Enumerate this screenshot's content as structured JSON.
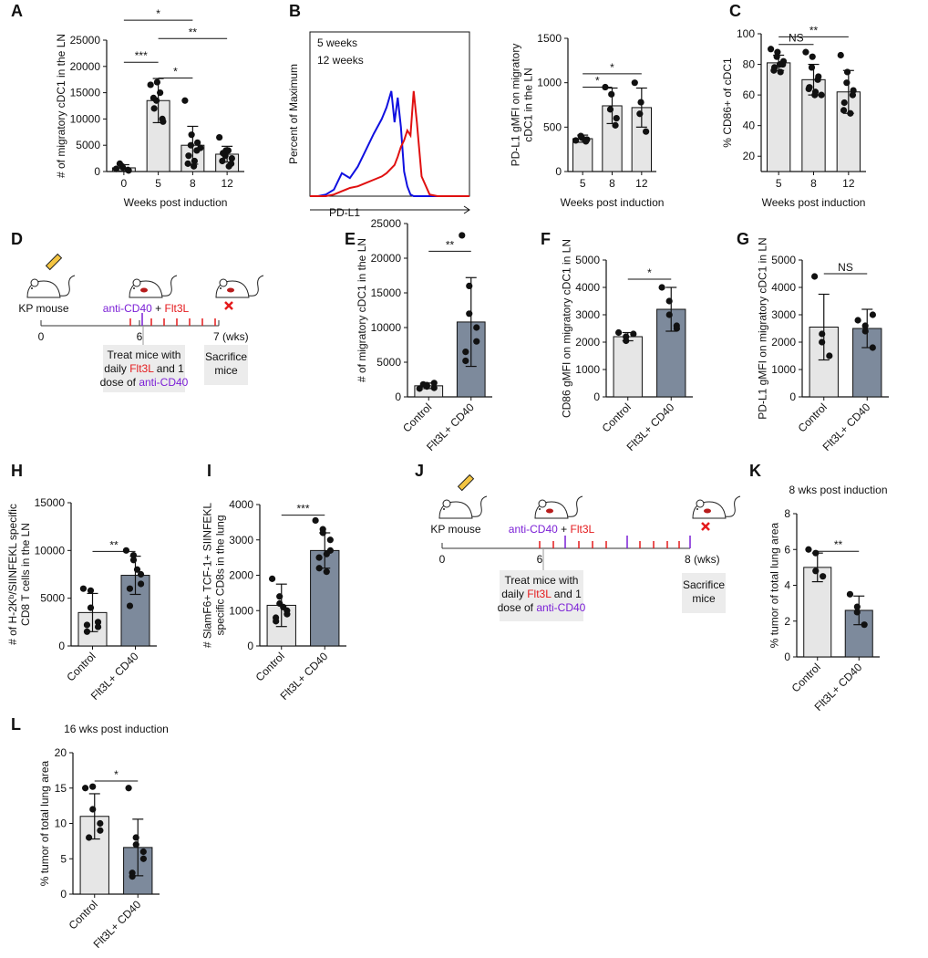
{
  "chart_data": [
    {
      "type": "bar",
      "panel": "A",
      "ylabel": [
        "# of migratory cDC1 in the LN"
      ],
      "xlabel": "Weeks post induction",
      "categories": [
        "0",
        "5",
        "8",
        "12"
      ],
      "values": [
        700,
        13500,
        5000,
        3300
      ],
      "errors": [
        600,
        4200,
        3600,
        1500
      ],
      "points": [
        [
          500,
          800,
          1000,
          200,
          300,
          1500
        ],
        [
          16500,
          17000,
          13500,
          9500,
          10000,
          12000,
          14000,
          15000
        ],
        [
          13500,
          7000,
          5000,
          5500,
          4000,
          3000,
          1500,
          2000,
          1000,
          4500
        ],
        [
          6500,
          4000,
          3000,
          2500,
          1500,
          3500,
          2000,
          1000,
          4000
        ]
      ],
      "colors": [
        "#e6e6e6",
        "#e6e6e6",
        "#e6e6e6",
        "#e6e6e6"
      ],
      "ylim": [
        0,
        25000
      ],
      "yticks": [
        0,
        5000,
        10000,
        15000,
        20000,
        25000
      ],
      "brackets": [
        {
          "from": "0",
          "to": "5",
          "y": 20800,
          "label": "***"
        },
        {
          "from": "5",
          "to": "8",
          "y": 17800,
          "label": "*"
        },
        {
          "from": "5",
          "to": "12",
          "y": 25300,
          "label": "**"
        },
        {
          "from": "0",
          "to": "8",
          "y": 28800,
          "label": "*"
        }
      ]
    },
    {
      "type": "line",
      "panel": "B",
      "ylabel": "Percent of Maximum",
      "xlabel": "PD-L1",
      "x": [
        0,
        5,
        10,
        15,
        20,
        25,
        30,
        35,
        40,
        45,
        48,
        51,
        53,
        55,
        57,
        59,
        61,
        63,
        65,
        67,
        70,
        75,
        80,
        90,
        100
      ],
      "xlim": [
        0,
        100
      ],
      "ylim": [
        0,
        100
      ],
      "series": [
        {
          "name": "5 weeks",
          "color": "#1010e0",
          "values": [
            0,
            0,
            1,
            4,
            14,
            11,
            18,
            28,
            38,
            47,
            54,
            64,
            45,
            60,
            42,
            15,
            6,
            1,
            0,
            0,
            0,
            0,
            0,
            0,
            0
          ]
        },
        {
          "name": "12 weeks",
          "color": "#e01010",
          "values": [
            0,
            0,
            0,
            1,
            3,
            5,
            6,
            8,
            10,
            12,
            14,
            17,
            19,
            24,
            30,
            34,
            40,
            37,
            64,
            45,
            12,
            1,
            0,
            0,
            0
          ]
        }
      ]
    },
    {
      "type": "bar",
      "ylabel": [
        "PD-L1 gMFI on migratory",
        "cDC1 in the LN"
      ],
      "xlabel": "Weeks post induction",
      "categories": [
        "5",
        "8",
        "12"
      ],
      "values": [
        370,
        740,
        720
      ],
      "errors": [
        40,
        200,
        220
      ],
      "points": [
        [
          350,
          380,
          400,
          360,
          340
        ],
        [
          950,
          870,
          700,
          600,
          520
        ],
        [
          1000,
          780,
          650,
          450
        ]
      ],
      "colors": [
        "#e6e6e6",
        "#e6e6e6",
        "#e6e6e6"
      ],
      "ylim": [
        0,
        1500
      ],
      "yticks": [
        0,
        500,
        1000,
        1500
      ],
      "brackets": [
        {
          "from": "5",
          "to": "8",
          "y": 950,
          "label": "*"
        },
        {
          "from": "5",
          "to": "12",
          "y": 1100,
          "label": "*"
        }
      ]
    },
    {
      "type": "bar",
      "panel": "C",
      "ylabel": [
        "% CD86+ of cDC1"
      ],
      "xlabel": "Weeks post induction",
      "categories": [
        "5",
        "8",
        "12"
      ],
      "values": [
        81,
        70,
        62
      ],
      "errors": [
        5,
        10,
        14
      ],
      "points": [
        [
          90,
          88,
          85,
          82,
          80,
          78,
          76,
          75,
          80
        ],
        [
          88,
          85,
          78,
          72,
          70,
          65,
          64,
          62,
          60,
          60
        ],
        [
          86,
          75,
          68,
          63,
          60,
          55,
          50,
          48
        ]
      ],
      "colors": [
        "#e6e6e6",
        "#e6e6e6",
        "#e6e6e6"
      ],
      "ylim": [
        10,
        100
      ],
      "yticks": [
        20,
        40,
        60,
        80,
        100
      ],
      "brackets": [
        {
          "from": "5",
          "to": "8",
          "y": 93,
          "label": "NS"
        },
        {
          "from": "5",
          "to": "12",
          "y": 98,
          "label": "**"
        }
      ]
    },
    {
      "type": "bar",
      "panel": "E",
      "ylabel": [
        "# of migratory cDC1 in the LN"
      ],
      "categories": [
        "Control",
        "Flt3L+ CD40"
      ],
      "values": [
        1600,
        10800
      ],
      "errors": [
        400,
        6400
      ],
      "points": [
        [
          1200,
          1500,
          1700,
          2000,
          1300,
          1800
        ],
        [
          23300,
          16000,
          12000,
          10000,
          8000,
          6500,
          5200
        ]
      ],
      "colors": [
        "#e6e6e6",
        "#7d8a9c"
      ],
      "ylim": [
        0,
        25000
      ],
      "yticks": [
        0,
        5000,
        10000,
        15000,
        20000,
        25000
      ],
      "brackets": [
        {
          "from": "Control",
          "to": "Flt3L+ CD40",
          "y": 21000,
          "label": "**"
        }
      ]
    },
    {
      "type": "bar",
      "panel": "F",
      "ylabel": [
        "CD86 gMFI on migratory cDC1 in LN"
      ],
      "categories": [
        "Control",
        "Flt3L+ CD40"
      ],
      "values": [
        2200,
        3200
      ],
      "errors": [
        150,
        800
      ],
      "points": [
        [
          2350,
          2200,
          2050,
          2300
        ],
        [
          4000,
          3500,
          3000,
          2600,
          2500
        ]
      ],
      "colors": [
        "#e6e6e6",
        "#7d8a9c"
      ],
      "ylim": [
        0,
        5000
      ],
      "yticks": [
        0,
        1000,
        2000,
        3000,
        4000,
        5000
      ],
      "brackets": [
        {
          "from": "Control",
          "to": "Flt3L+ CD40",
          "y": 4300,
          "label": "*"
        }
      ]
    },
    {
      "type": "bar",
      "panel": "G",
      "ylabel": [
        "PD-L1 gMFI on migratory cDC1 in LN"
      ],
      "categories": [
        "Control",
        "Flt3L+ CD40"
      ],
      "values": [
        2550,
        2500
      ],
      "errors": [
        1200,
        700
      ],
      "points": [
        [
          4400,
          2000,
          2300,
          1500
        ],
        [
          2800,
          2600,
          2400,
          1800,
          3000
        ]
      ],
      "colors": [
        "#e6e6e6",
        "#7d8a9c"
      ],
      "ylim": [
        0,
        5000
      ],
      "yticks": [
        0,
        1000,
        2000,
        3000,
        4000,
        5000
      ],
      "brackets": [
        {
          "from": "Control",
          "to": "Flt3L+ CD40",
          "y": 4500,
          "label": "NS"
        }
      ]
    },
    {
      "type": "bar",
      "panel": "H",
      "ylabel": [
        "# of H-2Kᵇ/SIINFEKL specific",
        "CD8 T cells in the LN"
      ],
      "categories": [
        "Control",
        "Flt3L+ CD40"
      ],
      "values": [
        3500,
        7400
      ],
      "errors": [
        2000,
        2000
      ],
      "points": [
        [
          6000,
          5800,
          4000,
          2500,
          2000,
          2200,
          1500
        ],
        [
          10000,
          9500,
          9000,
          7500,
          6500,
          6000,
          4200,
          8000
        ]
      ],
      "colors": [
        "#e6e6e6",
        "#7d8a9c"
      ],
      "ylim": [
        0,
        15000
      ],
      "yticks": [
        0,
        5000,
        10000,
        15000
      ],
      "brackets": [
        {
          "from": "Control",
          "to": "Flt3L+ CD40",
          "y": 9900,
          "label": "**"
        }
      ]
    },
    {
      "type": "bar",
      "panel": "I",
      "ylabel": [
        "# SlamF6+ TCF-1+ SIINFEKL",
        "specific CD8s in the lung"
      ],
      "categories": [
        "Control",
        "Flt3L+ CD40"
      ],
      "values": [
        1150,
        2700
      ],
      "errors": [
        600,
        500
      ],
      "points": [
        [
          1900,
          1400,
          1200,
          1000,
          900,
          800,
          700,
          1100
        ],
        [
          3550,
          3300,
          3200,
          3000,
          2700,
          2500,
          2200,
          2100,
          2600
        ]
      ],
      "colors": [
        "#e6e6e6",
        "#7d8a9c"
      ],
      "ylim": [
        0,
        4000
      ],
      "yticks": [
        0,
        1000,
        2000,
        3000,
        4000
      ],
      "brackets": [
        {
          "from": "Control",
          "to": "Flt3L+ CD40",
          "y": 3700,
          "label": "***"
        }
      ]
    },
    {
      "type": "bar",
      "panel": "K",
      "title": "8 wks post induction",
      "ylabel": [
        "% tumor of total lung area"
      ],
      "categories": [
        "Control",
        "Flt3L+ CD40"
      ],
      "values": [
        5,
        2.6
      ],
      "errors": [
        0.8,
        0.8
      ],
      "points": [
        [
          6,
          5.8,
          4.8,
          4.5
        ],
        [
          3.5,
          2.8,
          2.5,
          1.8
        ]
      ],
      "colors": [
        "#e6e6e6",
        "#7d8a9c"
      ],
      "ylim": [
        0,
        8
      ],
      "yticks": [
        0,
        2,
        4,
        6,
        8
      ],
      "brackets": [
        {
          "from": "Control",
          "to": "Flt3L+ CD40",
          "y": 5.9,
          "label": "**"
        }
      ]
    },
    {
      "type": "bar",
      "panel": "L",
      "title": "16 wks post induction",
      "ylabel": [
        "% tumor of total lung area"
      ],
      "categories": [
        "Control",
        "Flt3L+ CD40"
      ],
      "values": [
        11,
        6.6
      ],
      "errors": [
        3.2,
        4
      ],
      "points": [
        [
          15,
          15.2,
          12,
          10,
          9,
          8
        ],
        [
          15,
          8,
          7,
          6,
          5,
          3,
          2.5
        ]
      ],
      "colors": [
        "#e6e6e6",
        "#7d8a9c"
      ],
      "ylim": [
        0,
        20
      ],
      "yticks": [
        0,
        5,
        10,
        15,
        20
      ],
      "brackets": [
        {
          "from": "Control",
          "to": "Flt3L+ CD40",
          "y": 16,
          "label": "*"
        }
      ]
    }
  ],
  "diagrams": [
    {
      "panel": "D",
      "mouse_label": "KP mouse",
      "treatment": [
        {
          "text": "anti-CD40",
          "color": "#7b1fd6"
        },
        {
          "text": " + "
        },
        {
          "text": "Flt3L",
          "color": "#e41a1c"
        }
      ],
      "timeline_labels": [
        "0",
        "6",
        "7 (wks)"
      ],
      "treat_box": [
        [
          {
            "text": "Treat mice with"
          }
        ],
        [
          {
            "text": "daily "
          },
          {
            "text": "Flt3L",
            "color": "#e41a1c"
          },
          {
            "text": " and 1"
          }
        ],
        [
          {
            "text": "dose of "
          },
          {
            "text": "anti-CD40",
            "color": "#7b1fd6"
          }
        ]
      ],
      "sacrifice_box": [
        "Sacrifice",
        "mice"
      ]
    },
    {
      "panel": "J",
      "mouse_label": "KP mouse",
      "treatment": [
        {
          "text": "anti-CD40",
          "color": "#7b1fd6"
        },
        {
          "text": " + "
        },
        {
          "text": "Flt3L",
          "color": "#e41a1c"
        }
      ],
      "timeline_labels": [
        "0",
        "6",
        "8 (wks)"
      ],
      "treat_box": [
        [
          {
            "text": "Treat mice with"
          }
        ],
        [
          {
            "text": "daily "
          },
          {
            "text": "Flt3L",
            "color": "#e41a1c"
          },
          {
            "text": " and 1"
          }
        ],
        [
          {
            "text": "dose of "
          },
          {
            "text": "anti-CD40",
            "color": "#7b1fd6"
          }
        ]
      ],
      "sacrifice_box": [
        "Sacrifice",
        "mice"
      ]
    }
  ]
}
